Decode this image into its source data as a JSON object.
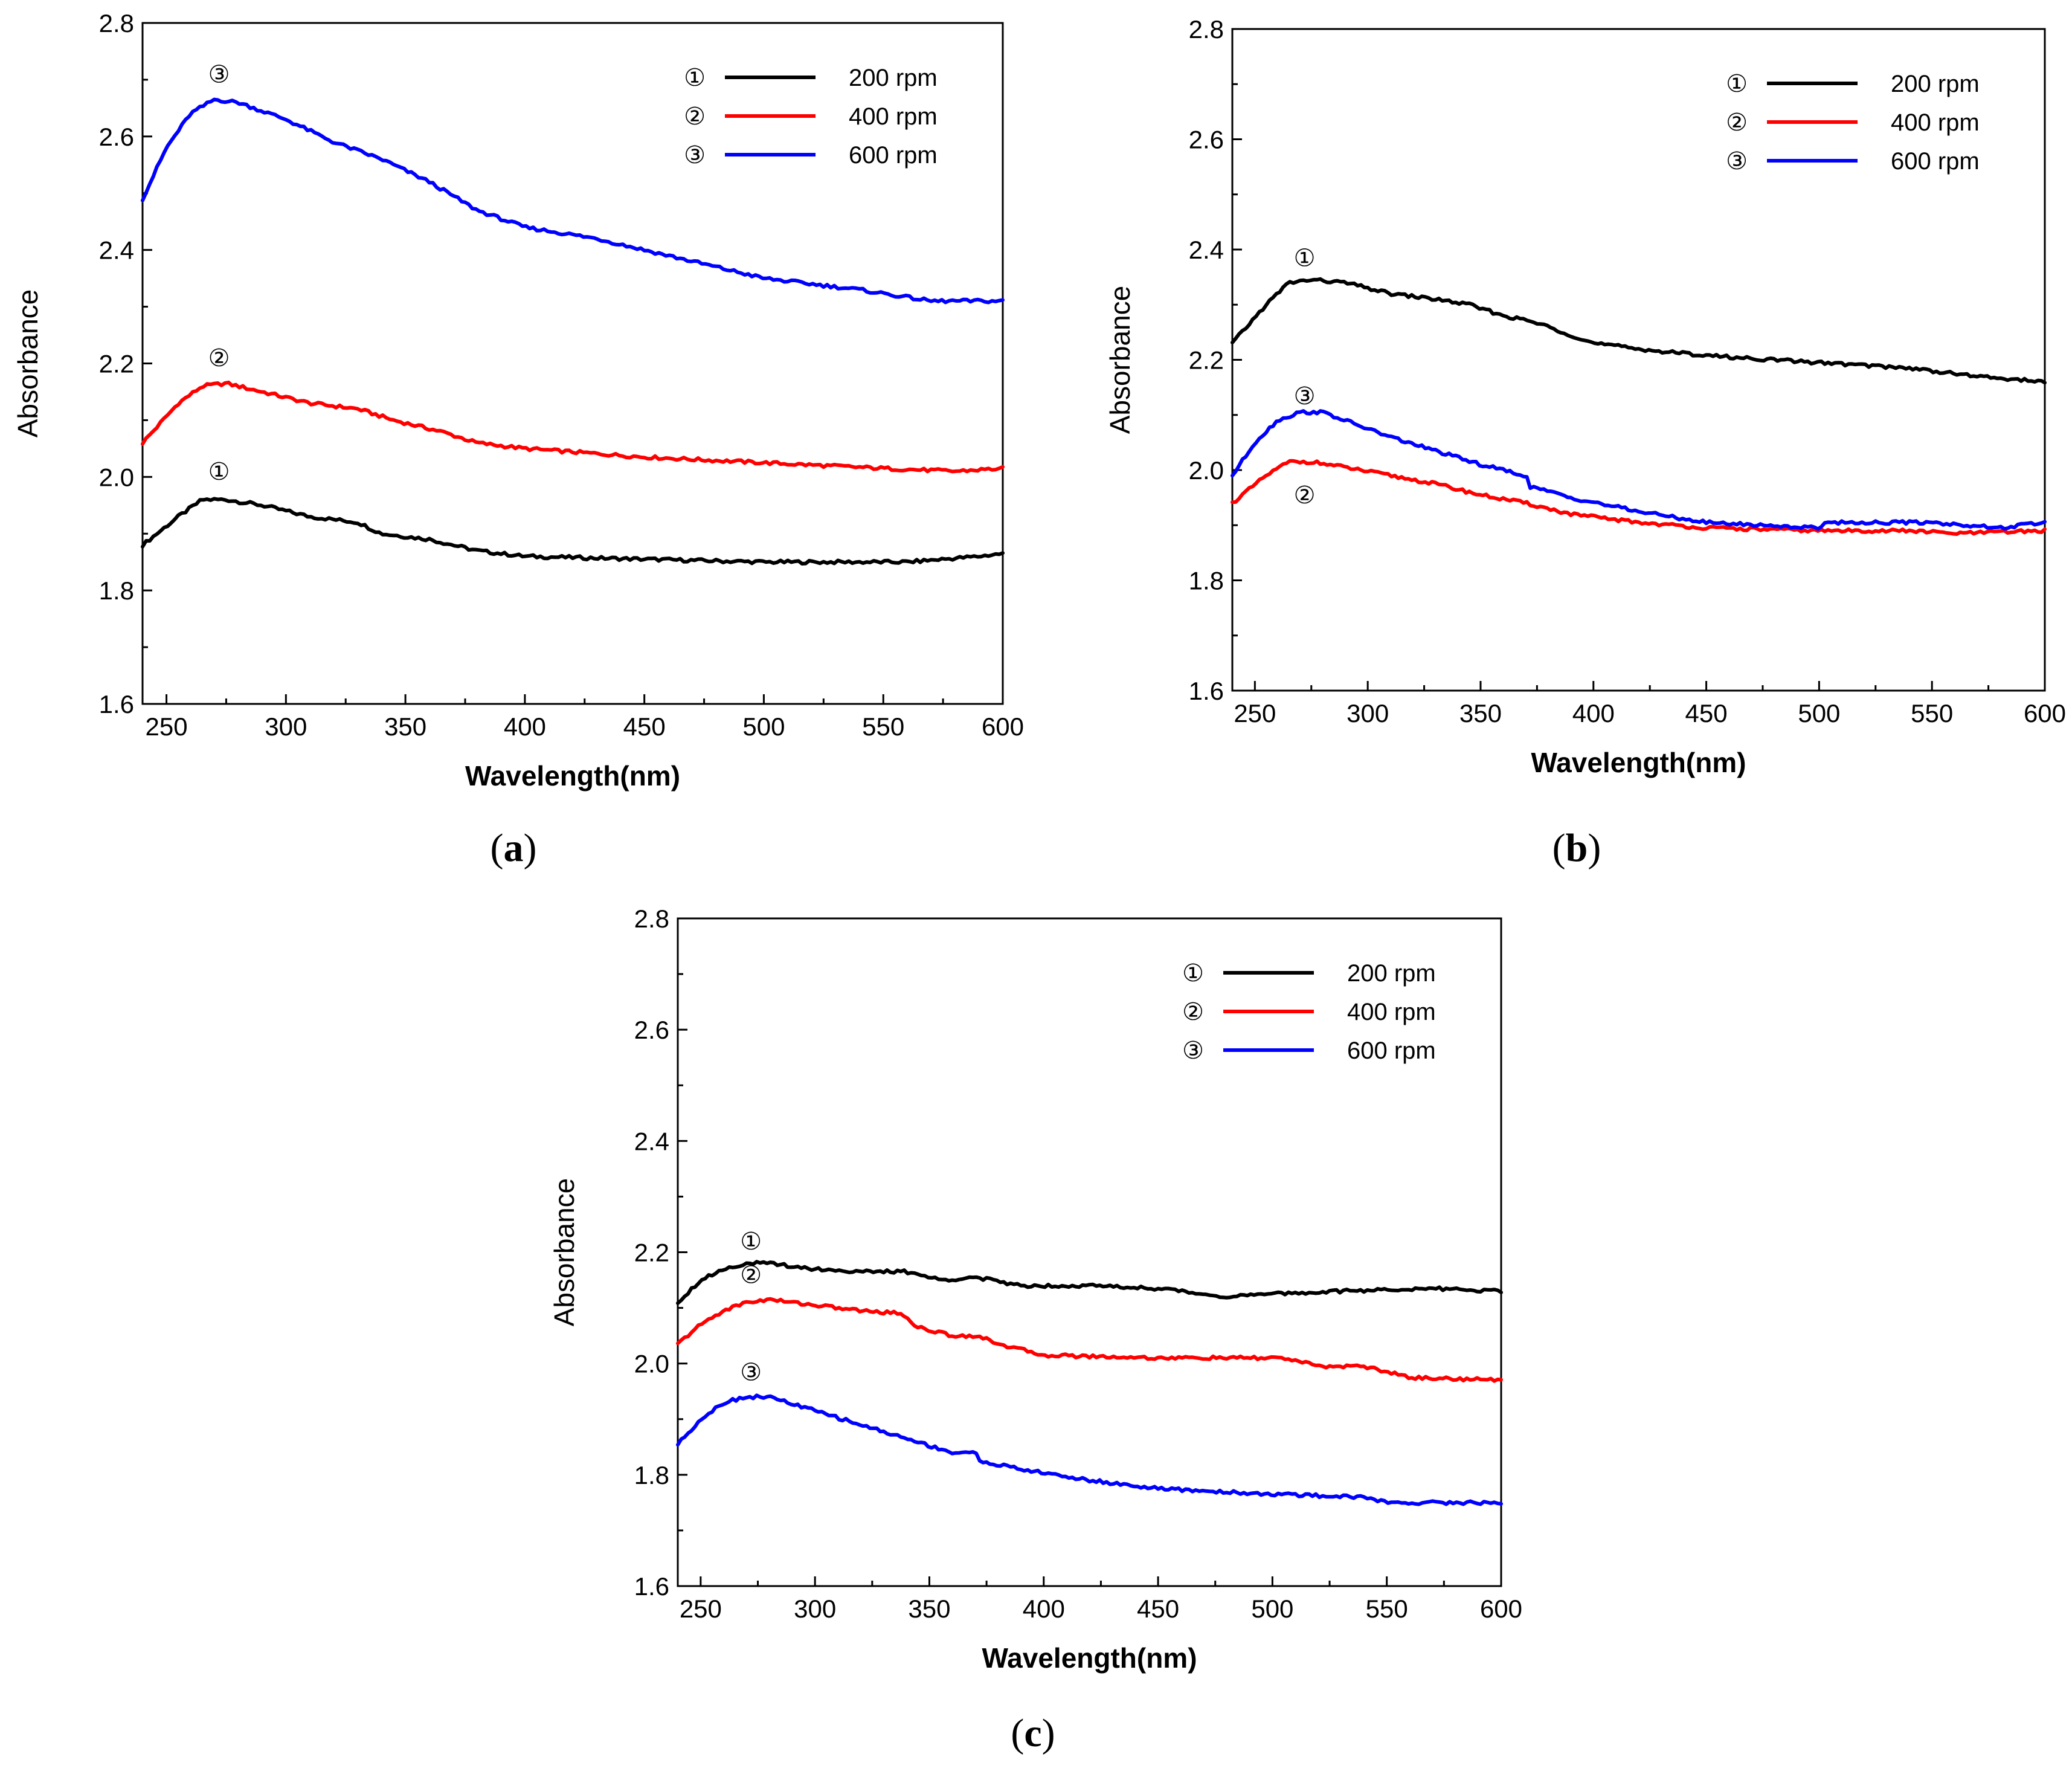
{
  "colors": {
    "s1": "#000000",
    "s2": "#ff0000",
    "s3": "#0000ff"
  },
  "chart_data": [
    {
      "type": "line",
      "caption_letter": "a",
      "xlabel": "Wavelength(nm)",
      "ylabel": "Absorbance",
      "xlim": [
        240,
        600
      ],
      "ylim": [
        1.6,
        2.8
      ],
      "xticks": [
        "250",
        "300",
        "350",
        "400",
        "450",
        "500",
        "550",
        "600"
      ],
      "yticks": [
        "1.6",
        "1.8",
        "2.0",
        "2.2",
        "2.4",
        "2.6",
        "2.8"
      ],
      "legend": [
        {
          "marker": "①",
          "label": "200 rpm"
        },
        {
          "marker": "②",
          "label": "400 rpm"
        },
        {
          "marker": "③",
          "label": "600 rpm"
        }
      ],
      "series": [
        {
          "name": "200 rpm",
          "marker": "①",
          "x": [
            240,
            255,
            265,
            275,
            290,
            310,
            330,
            340,
            360,
            380,
            400,
            450,
            500,
            530,
            560,
            590,
            600
          ],
          "y": [
            1.88,
            1.93,
            1.96,
            1.96,
            1.95,
            1.93,
            1.92,
            1.9,
            1.89,
            1.87,
            1.86,
            1.855,
            1.85,
            1.85,
            1.85,
            1.86,
            1.865
          ],
          "annotation_x": 272,
          "annotation_y": 2.01
        },
        {
          "name": "400 rpm",
          "marker": "②",
          "x": [
            240,
            255,
            265,
            275,
            290,
            310,
            330,
            345,
            365,
            380,
            400,
            450,
            500,
            550,
            580,
            600
          ],
          "y": [
            2.06,
            2.13,
            2.16,
            2.165,
            2.15,
            2.13,
            2.12,
            2.1,
            2.08,
            2.06,
            2.05,
            2.035,
            2.025,
            2.015,
            2.01,
            2.015
          ],
          "annotation_x": 272,
          "annotation_y": 2.21
        },
        {
          "name": "600 rpm",
          "marker": "③",
          "x": [
            240,
            250,
            260,
            270,
            280,
            300,
            320,
            340,
            360,
            380,
            400,
            430,
            460,
            500,
            540,
            570,
            600
          ],
          "y": [
            2.49,
            2.58,
            2.64,
            2.665,
            2.66,
            2.63,
            2.59,
            2.56,
            2.52,
            2.47,
            2.44,
            2.42,
            2.39,
            2.35,
            2.33,
            2.31,
            2.31
          ],
          "annotation_x": 272,
          "annotation_y": 2.71
        }
      ]
    },
    {
      "type": "line",
      "caption_letter": "b",
      "xlabel": "Wavelength(nm)",
      "ylabel": "Absorbance",
      "xlim": [
        240,
        600
      ],
      "ylim": [
        1.6,
        2.8
      ],
      "xticks": [
        "250",
        "300",
        "350",
        "400",
        "450",
        "500",
        "550",
        "600"
      ],
      "yticks": [
        "1.6",
        "1.8",
        "2.0",
        "2.2",
        "2.4",
        "2.6",
        "2.8"
      ],
      "legend": [
        {
          "marker": "①",
          "label": "200 rpm"
        },
        {
          "marker": "②",
          "label": "400 rpm"
        },
        {
          "marker": "③",
          "label": "600 rpm"
        }
      ],
      "series": [
        {
          "name": "200 rpm",
          "marker": "①",
          "x": [
            240,
            255,
            265,
            275,
            290,
            310,
            330,
            345,
            360,
            372,
            380,
            400,
            430,
            460,
            500,
            540,
            570,
            600
          ],
          "y": [
            2.23,
            2.3,
            2.34,
            2.345,
            2.34,
            2.32,
            2.31,
            2.3,
            2.28,
            2.27,
            2.26,
            2.23,
            2.215,
            2.205,
            2.195,
            2.185,
            2.17,
            2.16
          ],
          "annotation_x": 272,
          "annotation_y": 2.385
        },
        {
          "name": "400 rpm",
          "marker": "②",
          "x": [
            240,
            255,
            265,
            275,
            290,
            310,
            330,
            350,
            370,
            390,
            420,
            450,
            500,
            540,
            560,
            600
          ],
          "y": [
            1.94,
            1.99,
            2.015,
            2.015,
            2.005,
            1.99,
            1.975,
            1.955,
            1.94,
            1.92,
            1.905,
            1.895,
            1.89,
            1.89,
            1.885,
            1.89
          ],
          "annotation_x": 272,
          "annotation_y": 1.955
        },
        {
          "name": "600 rpm",
          "marker": "③",
          "x": [
            240,
            250,
            260,
            270,
            280,
            290,
            310,
            330,
            350,
            370,
            372,
            390,
            420,
            450,
            500,
            502,
            550,
            580,
            600
          ],
          "y": [
            1.99,
            2.05,
            2.09,
            2.105,
            2.105,
            2.09,
            2.06,
            2.035,
            2.01,
            1.99,
            1.97,
            1.95,
            1.925,
            1.905,
            1.895,
            1.905,
            1.905,
            1.895,
            1.905
          ],
          "annotation_x": 272,
          "annotation_y": 2.135
        }
      ]
    },
    {
      "type": "line",
      "caption_letter": "c",
      "xlabel": "Wavelength(nm)",
      "ylabel": "Absorbance",
      "xlim": [
        240,
        600
      ],
      "ylim": [
        1.6,
        2.8
      ],
      "xticks": [
        "250",
        "300",
        "350",
        "400",
        "450",
        "500",
        "550",
        "600"
      ],
      "yticks": [
        "1.6",
        "1.8",
        "2.0",
        "2.2",
        "2.4",
        "2.6",
        "2.8"
      ],
      "legend": [
        {
          "marker": "①",
          "label": "200 rpm"
        },
        {
          "marker": "②",
          "label": "400 rpm"
        },
        {
          "marker": "③",
          "label": "600 rpm"
        }
      ],
      "series": [
        {
          "name": "200 rpm",
          "marker": "①",
          "x": [
            240,
            250,
            260,
            270,
            280,
            300,
            320,
            340,
            355,
            370,
            390,
            420,
            450,
            480,
            500,
            530,
            570,
            600
          ],
          "y": [
            2.11,
            2.15,
            2.17,
            2.18,
            2.18,
            2.17,
            2.165,
            2.165,
            2.15,
            2.155,
            2.14,
            2.14,
            2.135,
            2.12,
            2.125,
            2.13,
            2.135,
            2.13
          ],
          "annotation_x": 272,
          "annotation_y": 2.22
        },
        {
          "name": "400 rpm",
          "marker": "②",
          "x": [
            240,
            250,
            260,
            270,
            280,
            300,
            320,
            338,
            345,
            360,
            370,
            385,
            400,
            450,
            500,
            505,
            520,
            540,
            560,
            600
          ],
          "y": [
            2.035,
            2.07,
            2.095,
            2.11,
            2.115,
            2.105,
            2.095,
            2.09,
            2.065,
            2.05,
            2.05,
            2.03,
            2.015,
            2.01,
            2.01,
            2.01,
            1.995,
            1.995,
            1.975,
            1.97
          ],
          "annotation_x": 272,
          "annotation_y": 2.16
        },
        {
          "name": "600 rpm",
          "marker": "③",
          "x": [
            240,
            250,
            260,
            270,
            280,
            300,
            320,
            340,
            360,
            370,
            372,
            390,
            420,
            450,
            500,
            540,
            550,
            600
          ],
          "y": [
            1.855,
            1.9,
            1.93,
            1.94,
            1.94,
            1.915,
            1.89,
            1.865,
            1.84,
            1.84,
            1.825,
            1.81,
            1.79,
            1.775,
            1.765,
            1.76,
            1.75,
            1.75
          ],
          "annotation_x": 272,
          "annotation_y": 1.985
        }
      ]
    }
  ]
}
